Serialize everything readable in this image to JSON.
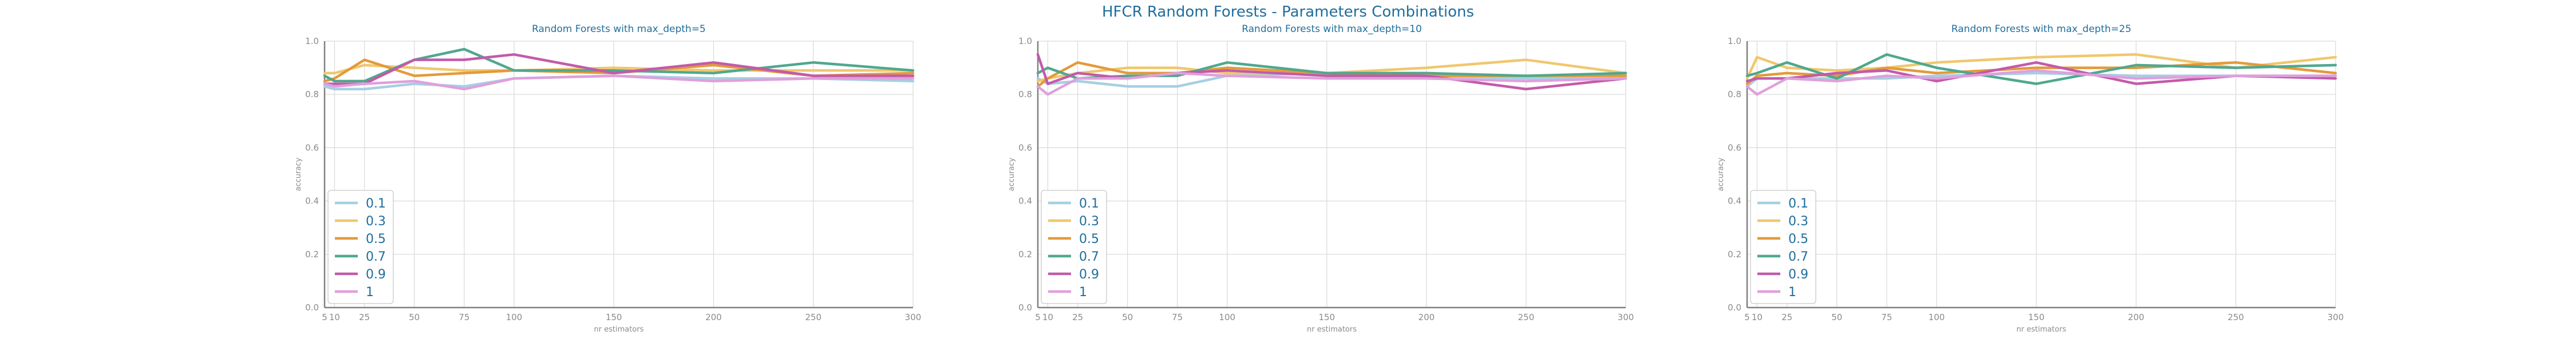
{
  "figure": {
    "title": "HFCR Random Forests - Parameters Combinations"
  },
  "chart_data": [
    {
      "type": "line",
      "title": "Random Forests with max_depth=5",
      "xlabel": "nr estimators",
      "ylabel": "accuracy",
      "x": [
        5,
        10,
        25,
        50,
        75,
        100,
        150,
        200,
        250,
        300
      ],
      "xticks": [
        "5",
        "10",
        "25",
        "50",
        "75",
        "100",
        "150",
        "200",
        "250",
        "300"
      ],
      "yticks": [
        "0.0",
        "0.2",
        "0.4",
        "0.6",
        "0.8",
        "1.0"
      ],
      "xlim": [
        5,
        300
      ],
      "ylim": [
        0,
        1
      ],
      "grid": true,
      "legend": "lower-left",
      "series": [
        {
          "name": "0.1",
          "color": "#a6cfe3",
          "values": [
            0.83,
            0.82,
            0.82,
            0.84,
            0.83,
            0.86,
            0.87,
            0.86,
            0.86,
            0.85
          ]
        },
        {
          "name": "0.3",
          "color": "#f0c76e",
          "values": [
            0.88,
            0.88,
            0.91,
            0.9,
            0.89,
            0.89,
            0.9,
            0.89,
            0.89,
            0.89
          ]
        },
        {
          "name": "0.5",
          "color": "#e39a3a",
          "values": [
            0.85,
            0.86,
            0.93,
            0.87,
            0.88,
            0.89,
            0.88,
            0.91,
            0.87,
            0.88
          ]
        },
        {
          "name": "0.7",
          "color": "#4fa88e",
          "values": [
            0.87,
            0.85,
            0.85,
            0.93,
            0.97,
            0.89,
            0.89,
            0.88,
            0.92,
            0.89
          ]
        },
        {
          "name": "0.9",
          "color": "#c35aaa",
          "values": [
            0.84,
            0.84,
            0.84,
            0.93,
            0.93,
            0.95,
            0.88,
            0.92,
            0.87,
            0.87
          ]
        },
        {
          "name": "1",
          "color": "#dfa0dc",
          "values": [
            0.84,
            0.83,
            0.84,
            0.85,
            0.82,
            0.86,
            0.87,
            0.85,
            0.86,
            0.86
          ]
        }
      ]
    },
    {
      "type": "line",
      "title": "Random Forests with max_depth=10",
      "xlabel": "nr estimators",
      "ylabel": "accuracy",
      "x": [
        5,
        10,
        25,
        50,
        75,
        100,
        150,
        200,
        250,
        300
      ],
      "xticks": [
        "5",
        "10",
        "25",
        "50",
        "75",
        "100",
        "150",
        "200",
        "250",
        "300"
      ],
      "yticks": [
        "0.0",
        "0.2",
        "0.4",
        "0.6",
        "0.8",
        "1.0"
      ],
      "xlim": [
        5,
        300
      ],
      "ylim": [
        0,
        1
      ],
      "grid": true,
      "legend": "lower-left",
      "series": [
        {
          "name": "0.1",
          "color": "#a6cfe3",
          "values": [
            0.86,
            0.84,
            0.85,
            0.83,
            0.83,
            0.87,
            0.88,
            0.87,
            0.86,
            0.86
          ]
        },
        {
          "name": "0.3",
          "color": "#f0c76e",
          "values": [
            0.85,
            0.86,
            0.88,
            0.9,
            0.9,
            0.88,
            0.88,
            0.9,
            0.93,
            0.88
          ]
        },
        {
          "name": "0.5",
          "color": "#e39a3a",
          "values": [
            0.83,
            0.86,
            0.92,
            0.88,
            0.88,
            0.9,
            0.88,
            0.87,
            0.87,
            0.87
          ]
        },
        {
          "name": "0.7",
          "color": "#4fa88e",
          "values": [
            0.88,
            0.9,
            0.86,
            0.87,
            0.87,
            0.92,
            0.88,
            0.88,
            0.87,
            0.88
          ]
        },
        {
          "name": "0.9",
          "color": "#c35aaa",
          "values": [
            0.95,
            0.84,
            0.88,
            0.86,
            0.88,
            0.89,
            0.87,
            0.87,
            0.82,
            0.86
          ]
        },
        {
          "name": "1",
          "color": "#dfa0dc",
          "values": [
            0.83,
            0.8,
            0.86,
            0.86,
            0.88,
            0.87,
            0.86,
            0.86,
            0.85,
            0.86
          ]
        }
      ]
    },
    {
      "type": "line",
      "title": "Random Forests with max_depth=25",
      "xlabel": "nr estimators",
      "ylabel": "accuracy",
      "x": [
        5,
        10,
        25,
        50,
        75,
        100,
        150,
        200,
        250,
        300
      ],
      "xticks": [
        "5",
        "10",
        "25",
        "50",
        "75",
        "100",
        "150",
        "200",
        "250",
        "300"
      ],
      "yticks": [
        "0.0",
        "0.2",
        "0.4",
        "0.6",
        "0.8",
        "1.0"
      ],
      "xlim": [
        5,
        300
      ],
      "ylim": [
        0,
        1
      ],
      "grid": true,
      "legend": "lower-left",
      "series": [
        {
          "name": "0.1",
          "color": "#a6cfe3",
          "values": [
            0.83,
            0.86,
            0.86,
            0.86,
            0.86,
            0.87,
            0.88,
            0.87,
            0.87,
            0.87
          ]
        },
        {
          "name": "0.3",
          "color": "#f0c76e",
          "values": [
            0.86,
            0.94,
            0.9,
            0.89,
            0.9,
            0.92,
            0.94,
            0.95,
            0.9,
            0.94
          ]
        },
        {
          "name": "0.5",
          "color": "#e39a3a",
          "values": [
            0.84,
            0.87,
            0.88,
            0.87,
            0.9,
            0.88,
            0.9,
            0.9,
            0.92,
            0.88
          ]
        },
        {
          "name": "0.7",
          "color": "#4fa88e",
          "values": [
            0.87,
            0.88,
            0.92,
            0.86,
            0.95,
            0.9,
            0.84,
            0.91,
            0.9,
            0.91
          ]
        },
        {
          "name": "0.9",
          "color": "#c35aaa",
          "values": [
            0.85,
            0.86,
            0.86,
            0.88,
            0.89,
            0.85,
            0.92,
            0.84,
            0.87,
            0.86
          ]
        },
        {
          "name": "1",
          "color": "#dfa0dc",
          "values": [
            0.83,
            0.8,
            0.86,
            0.85,
            0.87,
            0.86,
            0.89,
            0.86,
            0.87,
            0.87
          ]
        }
      ]
    }
  ]
}
